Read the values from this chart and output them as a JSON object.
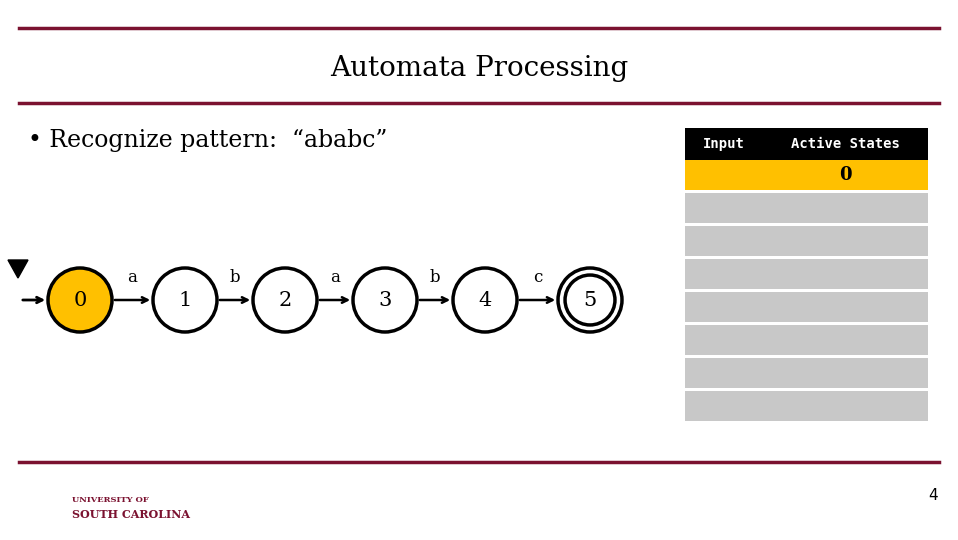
{
  "title": "Automata Processing",
  "bullet_text": "• Recognize pattern:  “ababc”",
  "states": [
    0,
    1,
    2,
    3,
    4,
    5
  ],
  "transitions": [
    {
      "from": 0,
      "to": 1,
      "label": "a"
    },
    {
      "from": 1,
      "to": 2,
      "label": "b"
    },
    {
      "from": 2,
      "to": 3,
      "label": "a"
    },
    {
      "from": 3,
      "to": 4,
      "label": "b"
    },
    {
      "from": 4,
      "to": 5,
      "label": "c"
    }
  ],
  "initial_state": 0,
  "accept_state": 5,
  "active_state": 0,
  "state_colors": {
    "0": "#FFC000",
    "1": "#FFFFFF",
    "2": "#FFFFFF",
    "3": "#FFFFFF",
    "4": "#FFFFFF",
    "5": "#FFFFFF"
  },
  "table_header_bg": "#000000",
  "table_header_text": "#FFFFFF",
  "table_row1_bg": "#FFC000",
  "table_row1_text_color": "#000000",
  "table_row1_active_states": "0",
  "table_gray_bg": "#C8C8C8",
  "table_num_gray_rows": 7,
  "line_color": "#7B1230",
  "page_number": "4",
  "background_color": "#FFFFFF",
  "title_fontsize": 20,
  "bullet_fontsize": 17
}
